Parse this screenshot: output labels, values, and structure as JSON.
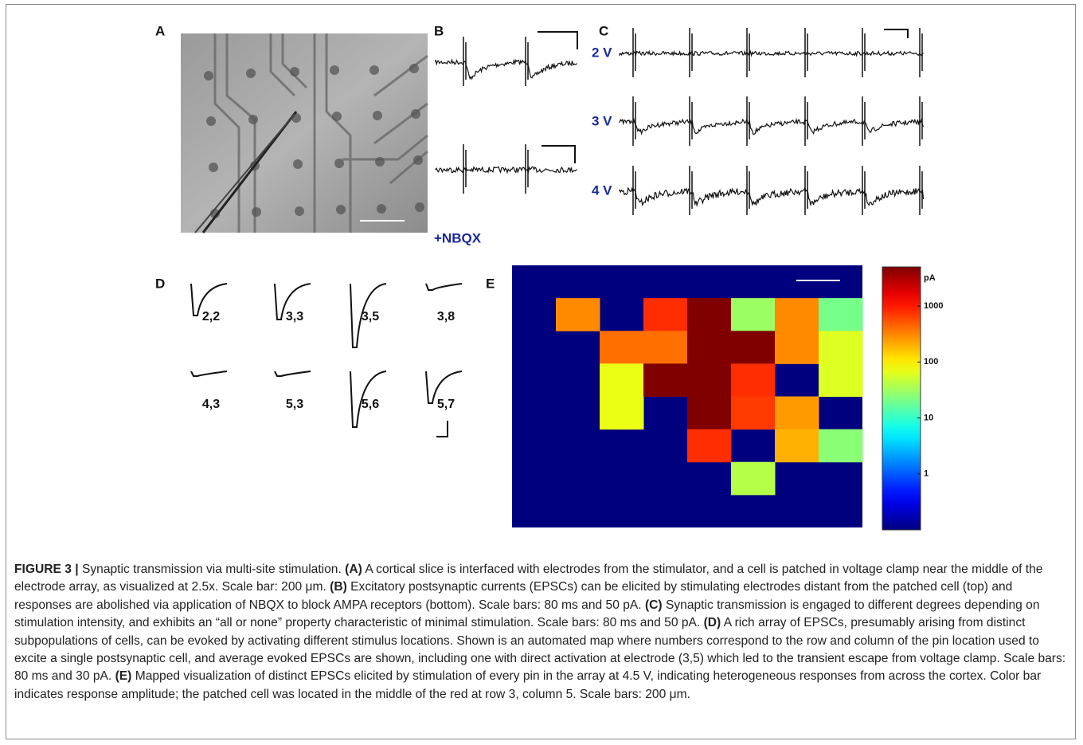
{
  "panel_labels": [
    "A",
    "B",
    "C",
    "D",
    "E"
  ],
  "panel_b": {
    "condition": "+NBQX"
  },
  "panel_c": {
    "voltages": [
      "2 V",
      "3 V",
      "4 V"
    ]
  },
  "panel_d": {
    "sites": [
      "2,2",
      "3,3",
      "3,5",
      "3,8",
      "4,3",
      "5,3",
      "5,6",
      "5,7"
    ]
  },
  "chart_data": {
    "type": "heatmap",
    "colormap": "jet",
    "values": [
      [
        null,
        null,
        null,
        null,
        null,
        null,
        null,
        null
      ],
      [
        null,
        300,
        null,
        800,
        5000,
        30,
        300,
        20
      ],
      [
        null,
        null,
        400,
        400,
        5000,
        5000,
        300,
        60
      ],
      [
        null,
        null,
        70,
        5000,
        5000,
        800,
        null,
        60
      ],
      [
        null,
        null,
        70,
        null,
        5000,
        700,
        250,
        null
      ],
      [
        null,
        null,
        null,
        null,
        800,
        null,
        200,
        25
      ],
      [
        null,
        null,
        null,
        null,
        null,
        40,
        null,
        null
      ],
      [
        null,
        null,
        null,
        null,
        null,
        null,
        null,
        null
      ]
    ],
    "colorbar": {
      "label": "pA",
      "log": true,
      "lim": [
        0.1,
        5000
      ],
      "ticks": [
        1,
        10,
        100,
        1000
      ]
    }
  },
  "caption": {
    "label": "FIGURE 3 |",
    "lead": "Synaptic transmission via multi-site stimulation.",
    "panels": [
      {
        "tag": "(A)",
        "text": "A cortical slice is interfaced with electrodes from the stimulator, and a cell is patched in voltage clamp near the middle of the electrode array, as visualized at 2.5x. Scale bar: 200 μm."
      },
      {
        "tag": "(B)",
        "text": "Excitatory postsynaptic currents (EPSCs) can be elicited by stimulating electrodes distant from the patched cell (top) and responses are abolished via application of NBQX to block AMPA receptors (bottom). Scale bars: 80 ms and 50 pA."
      },
      {
        "tag": "(C)",
        "text": "Synaptic transmission is engaged to different degrees depending on stimulation intensity, and exhibits an “all or none” property characteristic of minimal stimulation. Scale bars: 80 ms and 50 pA."
      },
      {
        "tag": "(D)",
        "text": "A rich array of EPSCs, presumably arising from distinct subpopulations of cells, can be evoked by activating different stimulus locations. Shown is an automated map where numbers correspond to the row and column of the pin location used to excite a single postsynaptic cell, and average evoked EPSCs are shown, including one with direct activation at electrode (3,5) which led to the transient escape from voltage clamp. Scale bars: 80 ms and 30 pA."
      },
      {
        "tag": "(E)",
        "text": "Mapped visualization of distinct EPSCs elicited by stimulation of every pin in the array at 4.5 V, indicating heterogeneous responses from across the cortex. Color bar indicates response amplitude; the patched cell was located in the middle of the red at row 3, column 5. Scale bars: 200 μm."
      }
    ]
  }
}
